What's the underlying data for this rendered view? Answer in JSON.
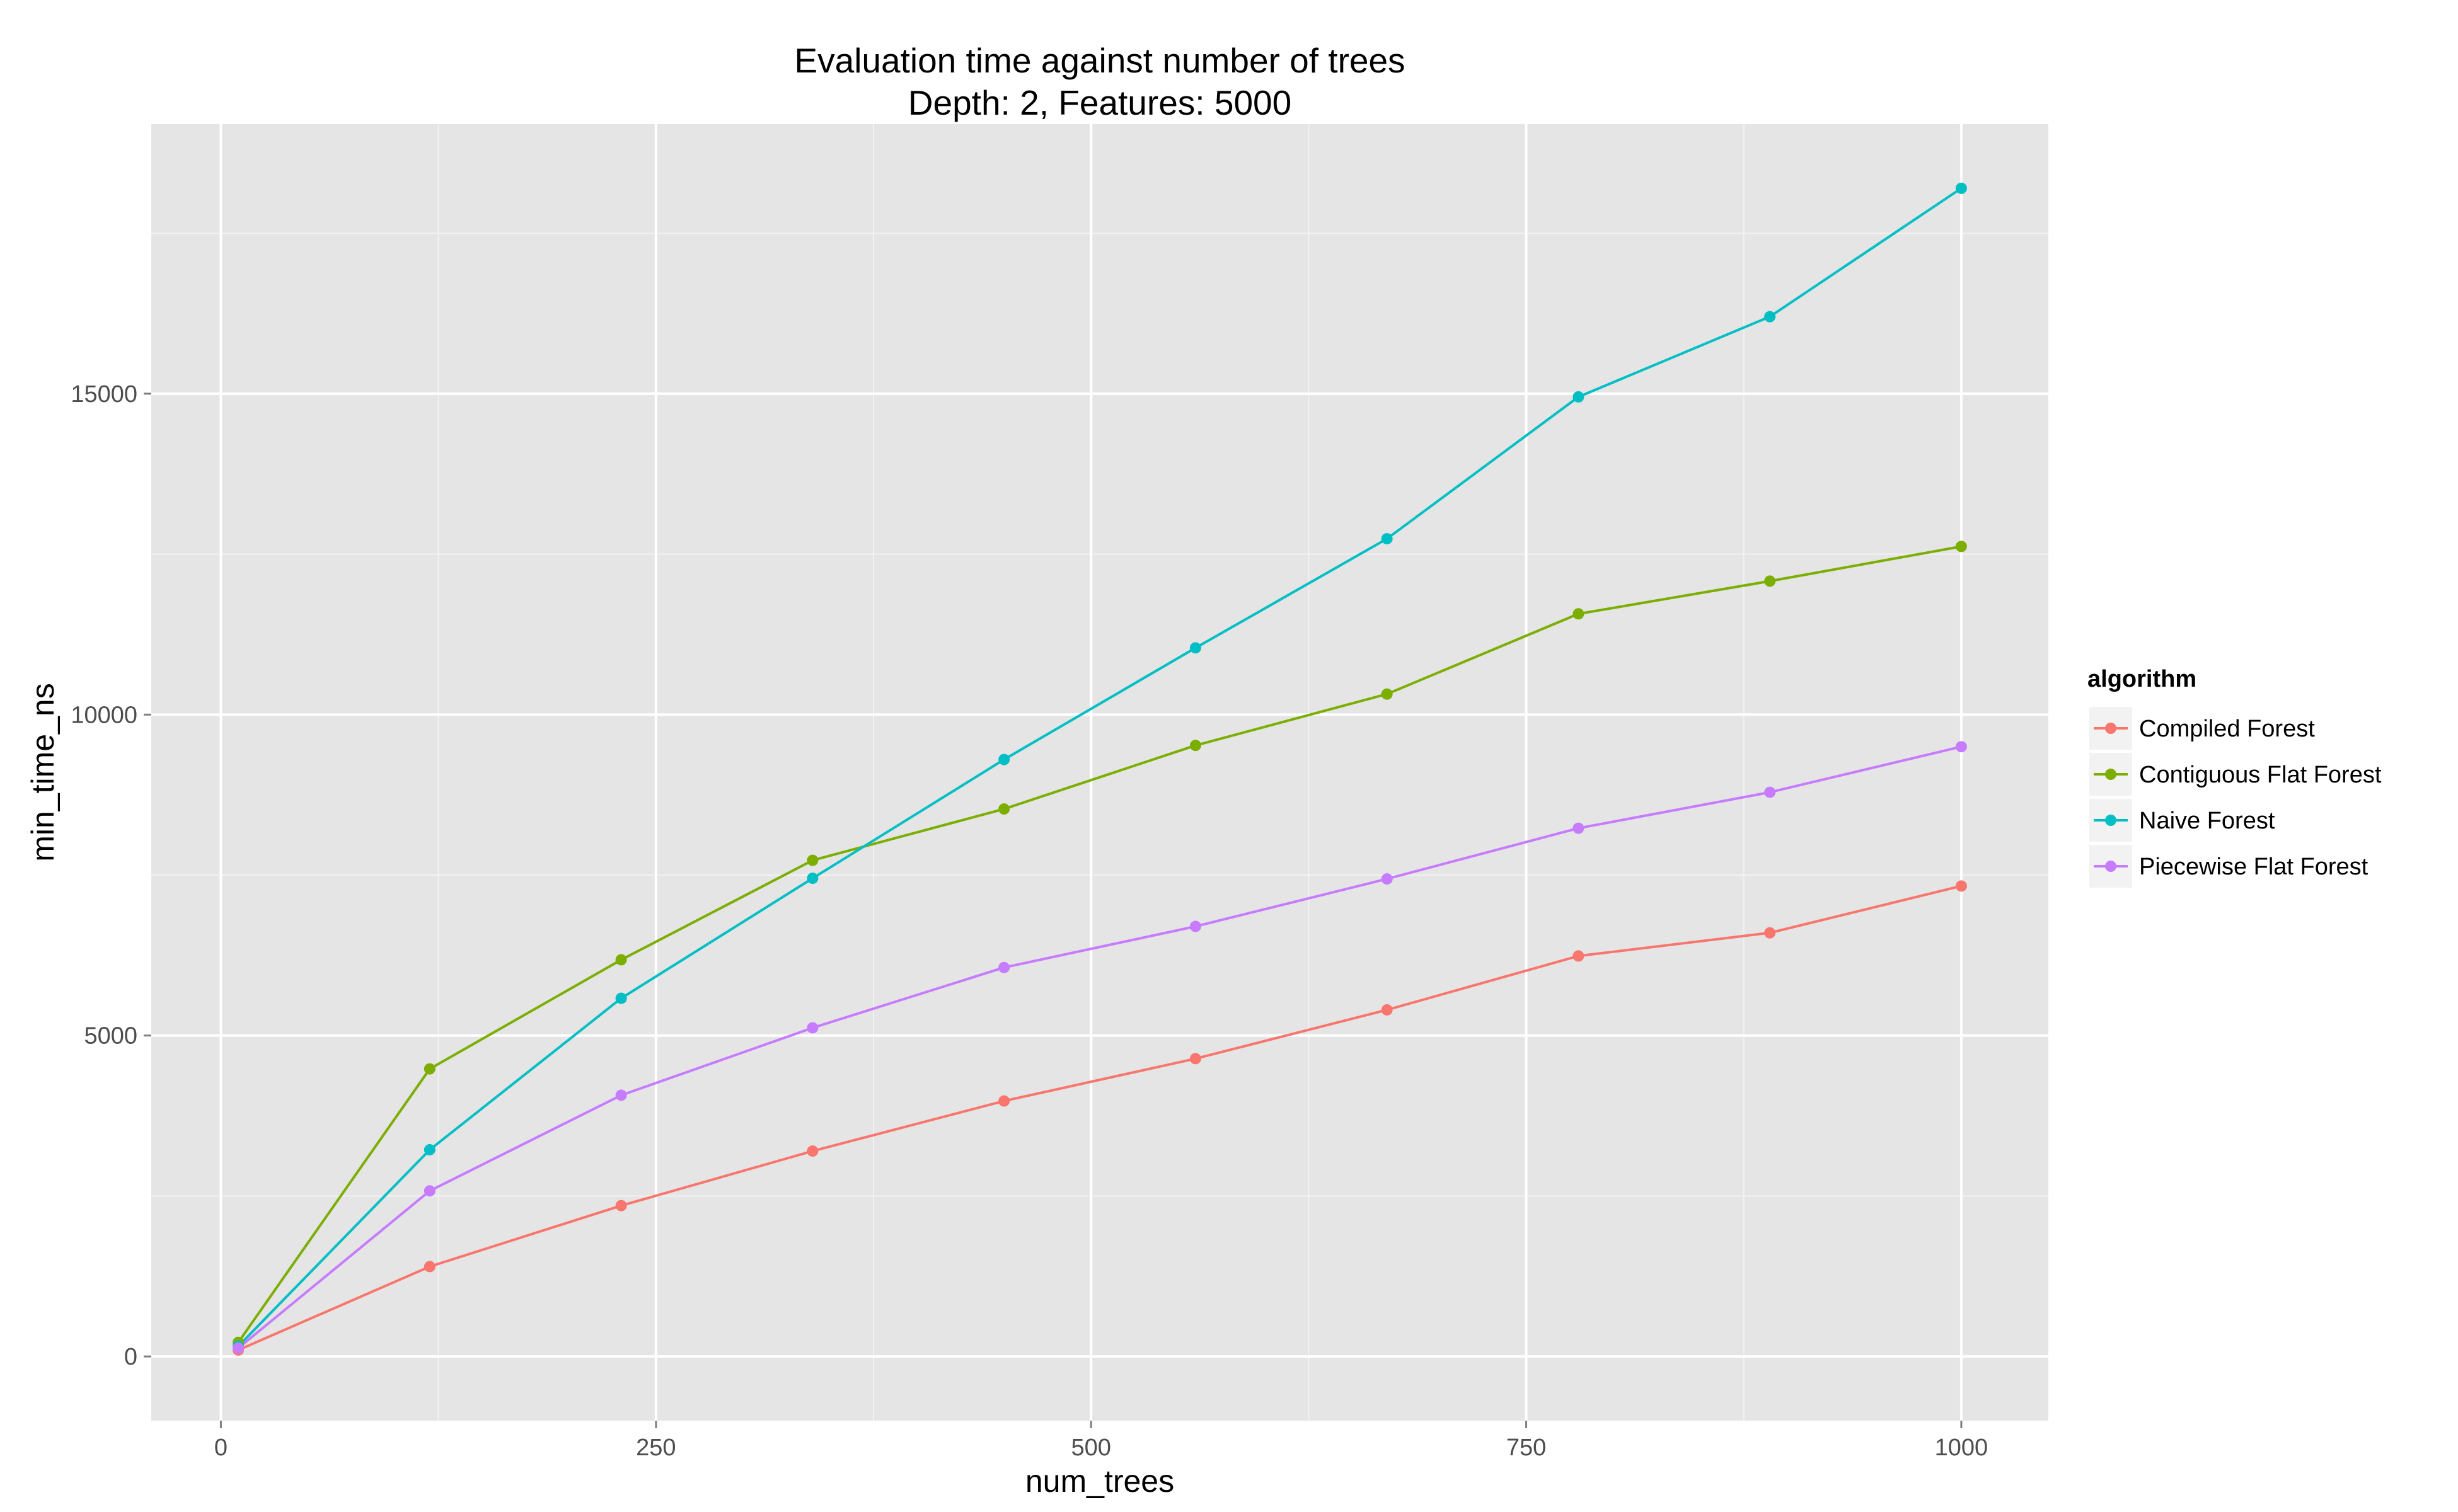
{
  "chart_data": {
    "type": "line",
    "title": "Evaluation time against number of trees",
    "subtitle": "Depth: 2, Features: 5000",
    "xlabel": "num_trees",
    "ylabel": "min_time_ns",
    "xlim": [
      -40,
      1050
    ],
    "ylim": [
      -1000,
      19200
    ],
    "x_ticks": [
      0,
      250,
      500,
      750,
      1000
    ],
    "x_tick_labels": [
      "0",
      "250",
      "500",
      "750",
      "1000"
    ],
    "y_ticks": [
      0,
      5000,
      10000,
      15000
    ],
    "y_tick_labels": [
      "0",
      "5000",
      "10000",
      "15000"
    ],
    "x_minor": [
      125,
      375,
      625,
      875
    ],
    "y_minor": [
      2500,
      7500,
      12500,
      17500
    ],
    "grid": true,
    "legend_title": "algorithm",
    "legend_position": "right",
    "x": [
      10,
      120,
      230,
      340,
      450,
      560,
      670,
      780,
      890,
      1000
    ],
    "series": [
      {
        "name": "Compiled Forest",
        "color": "#F8766D",
        "values": [
          100,
          1400,
          2350,
          3200,
          3980,
          4640,
          5400,
          6240,
          6600,
          7330
        ]
      },
      {
        "name": "Contiguous Flat Forest",
        "color": "#7CAE00",
        "values": [
          220,
          4480,
          6180,
          7730,
          8530,
          9520,
          10320,
          11570,
          12080,
          12620
        ]
      },
      {
        "name": "Naive Forest",
        "color": "#00BFC4",
        "values": [
          160,
          3220,
          5580,
          7450,
          9300,
          11040,
          12740,
          14950,
          16200,
          18200
        ]
      },
      {
        "name": "Piecewise Flat Forest",
        "color": "#C77CFF",
        "values": [
          130,
          2580,
          4070,
          5120,
          6060,
          6700,
          7440,
          8230,
          8790,
          9500
        ]
      }
    ]
  }
}
